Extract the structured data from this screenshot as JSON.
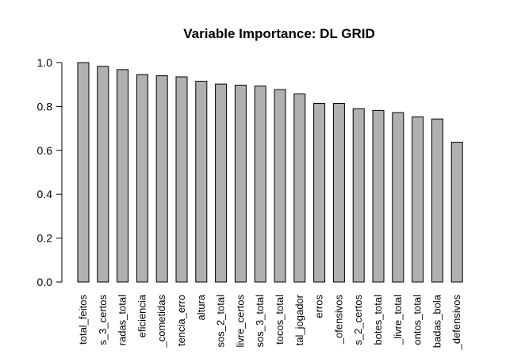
{
  "chart_data": {
    "type": "bar",
    "title": "Variable Importance: DL GRID",
    "xlabel": "",
    "ylabel": "",
    "ylim": [
      0,
      1
    ],
    "yticks": [
      "0.0",
      "0.2",
      "0.4",
      "0.6",
      "0.8",
      "1.0"
    ],
    "grid": false,
    "bar_color": "#b0b0b0",
    "categories": [
      "total_feitos",
      "s_3_certos",
      "radas_total",
      "eficiencia",
      "_cometidas",
      "tencia_erro",
      "altura",
      "sos_2_total",
      "livre_certos",
      "sos_3_total",
      "tocos_total",
      "tal_jogador",
      "erros",
      "_ofensivos",
      "s_2_certos",
      "botes_total",
      "_livre_total",
      "ontos_total",
      "badas_bola",
      "_defensivos"
    ],
    "values": [
      1.0,
      0.983,
      0.968,
      0.945,
      0.94,
      0.935,
      0.915,
      0.902,
      0.897,
      0.893,
      0.877,
      0.857,
      0.814,
      0.814,
      0.79,
      0.782,
      0.772,
      0.752,
      0.743,
      0.637
    ]
  }
}
